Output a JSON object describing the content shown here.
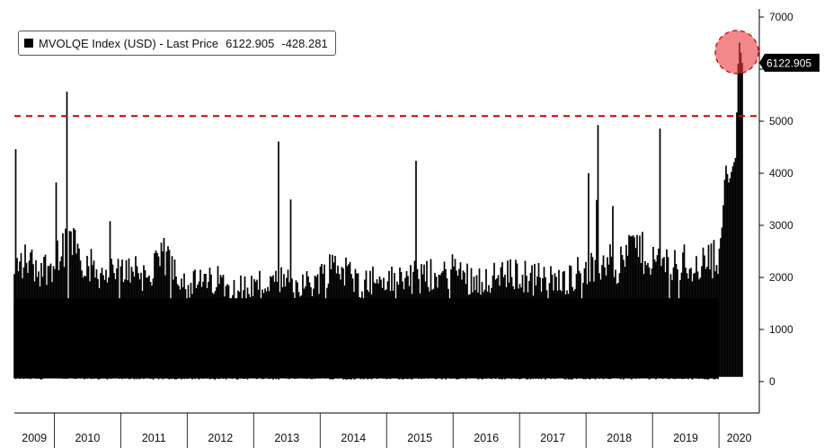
{
  "legend": {
    "name": "MVOLQE Index (USD) - Last Price",
    "last_value": "6122.905",
    "change": "-428.281",
    "swatch_color": "#000000"
  },
  "chart_data": {
    "type": "bar",
    "ylim": [
      0,
      7000
    ],
    "y_ticks": [
      0,
      1000,
      2000,
      3000,
      4000,
      5000,
      6000,
      7000
    ],
    "y_tick_labels": [
      "0",
      "1000",
      "2000",
      "3000",
      "4000",
      "5000",
      "",
      "7000"
    ],
    "x_years": [
      "2009",
      "2010",
      "2011",
      "2012",
      "2013",
      "2014",
      "2015",
      "2016",
      "2017",
      "2018",
      "2019",
      "2020"
    ],
    "x_range": [
      2009.4,
      2020.35
    ],
    "last_price_label": "6122.905",
    "last_price": 6122.905,
    "reference_line": 5100,
    "reference_line_color": "#cc0000",
    "highlight_color": "#e8393a",
    "bar_color": "#000000",
    "series": [
      {
        "points": [
          [
            2009.4,
            2250
          ],
          [
            2009.5,
            2300
          ],
          [
            2009.6,
            2400
          ],
          [
            2009.7,
            2250
          ],
          [
            2009.8,
            2200
          ],
          [
            2009.9,
            2250
          ],
          [
            2010.0,
            2350
          ],
          [
            2010.1,
            2600
          ],
          [
            2010.2,
            2750
          ],
          [
            2010.3,
            2850
          ],
          [
            2010.4,
            2500
          ],
          [
            2010.5,
            2300
          ],
          [
            2010.6,
            2200
          ],
          [
            2010.7,
            2150
          ],
          [
            2010.8,
            2100
          ],
          [
            2010.9,
            2150
          ],
          [
            2011.0,
            2100
          ],
          [
            2011.1,
            2200
          ],
          [
            2011.2,
            2300
          ],
          [
            2011.3,
            2100
          ],
          [
            2011.4,
            2050
          ],
          [
            2011.5,
            2150
          ],
          [
            2011.6,
            2400
          ],
          [
            2011.7,
            2450
          ],
          [
            2011.8,
            2300
          ],
          [
            2011.9,
            2100
          ],
          [
            2012.0,
            1950
          ],
          [
            2012.1,
            1900
          ],
          [
            2012.2,
            1950
          ],
          [
            2012.3,
            1900
          ],
          [
            2012.4,
            2000
          ],
          [
            2012.5,
            1950
          ],
          [
            2012.6,
            1900
          ],
          [
            2012.7,
            1950
          ],
          [
            2012.8,
            1850
          ],
          [
            2012.9,
            1800
          ],
          [
            2013.0,
            1900
          ],
          [
            2013.1,
            1950
          ],
          [
            2013.2,
            1900
          ],
          [
            2013.3,
            1950
          ],
          [
            2013.4,
            2000
          ],
          [
            2013.5,
            1950
          ],
          [
            2013.6,
            1900
          ],
          [
            2013.7,
            1950
          ],
          [
            2013.8,
            1900
          ],
          [
            2013.9,
            1950
          ],
          [
            2014.0,
            2050
          ],
          [
            2014.1,
            2150
          ],
          [
            2014.2,
            2350
          ],
          [
            2014.3,
            2250
          ],
          [
            2014.4,
            2150
          ],
          [
            2014.5,
            2000
          ],
          [
            2014.6,
            1950
          ],
          [
            2014.7,
            1950
          ],
          [
            2014.8,
            2000
          ],
          [
            2014.9,
            1950
          ],
          [
            2015.0,
            2000
          ],
          [
            2015.1,
            1950
          ],
          [
            2015.2,
            2050
          ],
          [
            2015.3,
            2000
          ],
          [
            2015.4,
            2050
          ],
          [
            2015.5,
            2000
          ],
          [
            2015.6,
            2050
          ],
          [
            2015.7,
            2100
          ],
          [
            2015.8,
            2000
          ],
          [
            2015.9,
            2100
          ],
          [
            2016.0,
            2250
          ],
          [
            2016.1,
            2150
          ],
          [
            2016.2,
            2050
          ],
          [
            2016.3,
            2000
          ],
          [
            2016.4,
            2000
          ],
          [
            2016.5,
            2050
          ],
          [
            2016.6,
            2000
          ],
          [
            2016.7,
            2100
          ],
          [
            2016.8,
            2050
          ],
          [
            2016.9,
            2100
          ],
          [
            2017.0,
            2100
          ],
          [
            2017.1,
            2050
          ],
          [
            2017.2,
            2000
          ],
          [
            2017.3,
            2050
          ],
          [
            2017.4,
            1950
          ],
          [
            2017.5,
            2000
          ],
          [
            2017.6,
            1950
          ],
          [
            2017.7,
            2000
          ],
          [
            2017.8,
            2100
          ],
          [
            2017.9,
            2150
          ],
          [
            2018.0,
            2250
          ],
          [
            2018.1,
            2200
          ],
          [
            2018.2,
            2250
          ],
          [
            2018.3,
            2400
          ],
          [
            2018.4,
            2300
          ],
          [
            2018.5,
            2200
          ],
          [
            2018.6,
            2500
          ],
          [
            2018.7,
            2700
          ],
          [
            2018.8,
            2600
          ],
          [
            2018.9,
            2450
          ],
          [
            2019.0,
            2400
          ],
          [
            2019.1,
            2350
          ],
          [
            2019.2,
            2300
          ],
          [
            2019.3,
            2250
          ],
          [
            2019.4,
            2300
          ],
          [
            2019.5,
            2350
          ],
          [
            2019.6,
            2250
          ],
          [
            2019.7,
            2300
          ],
          [
            2019.8,
            2350
          ],
          [
            2019.9,
            2400
          ],
          [
            2020.0,
            2500
          ],
          [
            2020.05,
            3000
          ],
          [
            2020.1,
            4200
          ],
          [
            2020.15,
            3800
          ],
          [
            2020.2,
            4100
          ],
          [
            2020.25,
            4300
          ],
          [
            2020.3,
            6600
          ],
          [
            2020.35,
            6122.905
          ]
        ]
      }
    ]
  }
}
